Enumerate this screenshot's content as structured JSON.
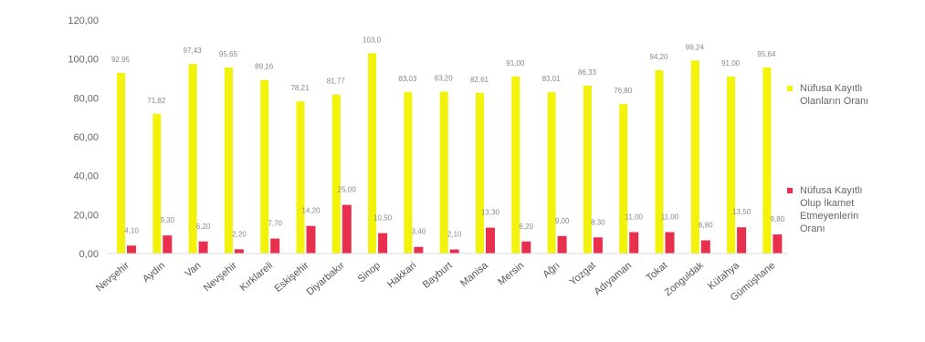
{
  "chart_data": {
    "type": "bar",
    "title": "",
    "xlabel": "",
    "ylabel": "",
    "ylim": [
      0,
      120
    ],
    "yticks": [
      "0,00",
      "20,00",
      "40,00",
      "60,00",
      "80,00",
      "100,00",
      "120,00"
    ],
    "grid": false,
    "legend_position": "right",
    "categories": [
      "Nevşehir",
      "Aydın",
      "Van",
      "Nevşehir",
      "Kırklareli",
      "Eskişehir",
      "Diyarbakır",
      "Sinop",
      "Hakkari",
      "Bayburt",
      "Manisa",
      "Mersin",
      "Ağrı",
      "Yozgat",
      "Adıyaman",
      "Tokat",
      "Zonguldak",
      "Kütahya",
      "Gümüşhane"
    ],
    "series": [
      {
        "name": "Nüfusa Kayıtlı Olanların Oranı",
        "color": "#f2f20a",
        "values": [
          92.9,
          71.8,
          97.4,
          95.6,
          89.2,
          78.2,
          81.8,
          103.0,
          83.0,
          83.2,
          82.6,
          91.0,
          83.0,
          86.3,
          76.8,
          94.2,
          99.2,
          91.0,
          95.6
        ],
        "labels": [
          "92,95",
          "71,82",
          "97,43",
          "95,65",
          "89,16",
          "78,21",
          "81,77",
          "103,0",
          "83,03",
          "83,20",
          "82,61",
          "91,00",
          "83,01",
          "86,33",
          "76,80",
          "94,20",
          "99,24",
          "91,00",
          "95,64"
        ]
      },
      {
        "name": "Nüfusa Kayıtlı Olup İkamet Etmeyenlerin Oranı",
        "color": "#e8304e",
        "values": [
          4.1,
          9.3,
          6.2,
          2.2,
          7.7,
          14.2,
          25.0,
          10.5,
          3.4,
          2.1,
          13.3,
          6.2,
          9.0,
          8.3,
          11.0,
          11.0,
          6.8,
          13.5,
          9.8
        ],
        "labels": [
          "4,10",
          "9,30",
          "6,20",
          "2,20",
          "7,70",
          "14,20",
          "25,00",
          "10,50",
          "3,40",
          "2,10",
          "13,30",
          "6,20",
          "9,00",
          "8,30",
          "11,00",
          "11,00",
          "6,80",
          "13,50",
          "9,80"
        ]
      }
    ]
  }
}
